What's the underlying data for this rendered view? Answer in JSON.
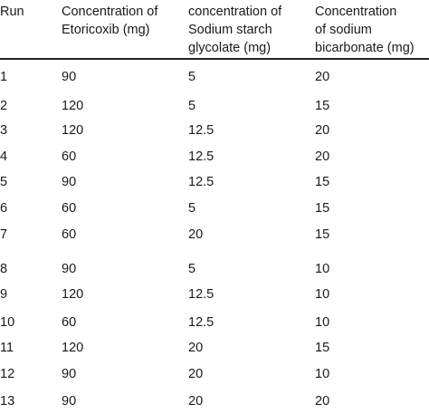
{
  "headers": [
    [
      "Run"
    ],
    [
      "Concentration of",
      "Etoricoxib (mg)"
    ],
    [
      "concentration of",
      "Sodium starch",
      "glycolate (mg)"
    ],
    [
      "Concentration",
      "of  sodium",
      "bicarbonate  (mg)"
    ]
  ],
  "rows": [
    [
      "1",
      "90",
      "5",
      "20"
    ],
    [
      "2",
      "120",
      "5",
      "15"
    ],
    [
      "3",
      "120",
      "12.5",
      "20"
    ],
    [
      "4",
      "60",
      "12.5",
      "20"
    ],
    [
      "5",
      "90",
      "12.5",
      "15"
    ],
    [
      "6",
      "60",
      "5",
      "15"
    ],
    [
      "7",
      "60",
      "20",
      "15"
    ],
    [
      "8",
      "90",
      "5",
      "10"
    ],
    [
      "9",
      "120",
      "12.5",
      "10"
    ],
    [
      "10",
      "60",
      "12.5",
      "10"
    ],
    [
      "11",
      "120",
      "20",
      "15"
    ],
    [
      "12",
      "90",
      "20",
      "10"
    ],
    [
      "13",
      "90",
      "20",
      "20"
    ]
  ]
}
